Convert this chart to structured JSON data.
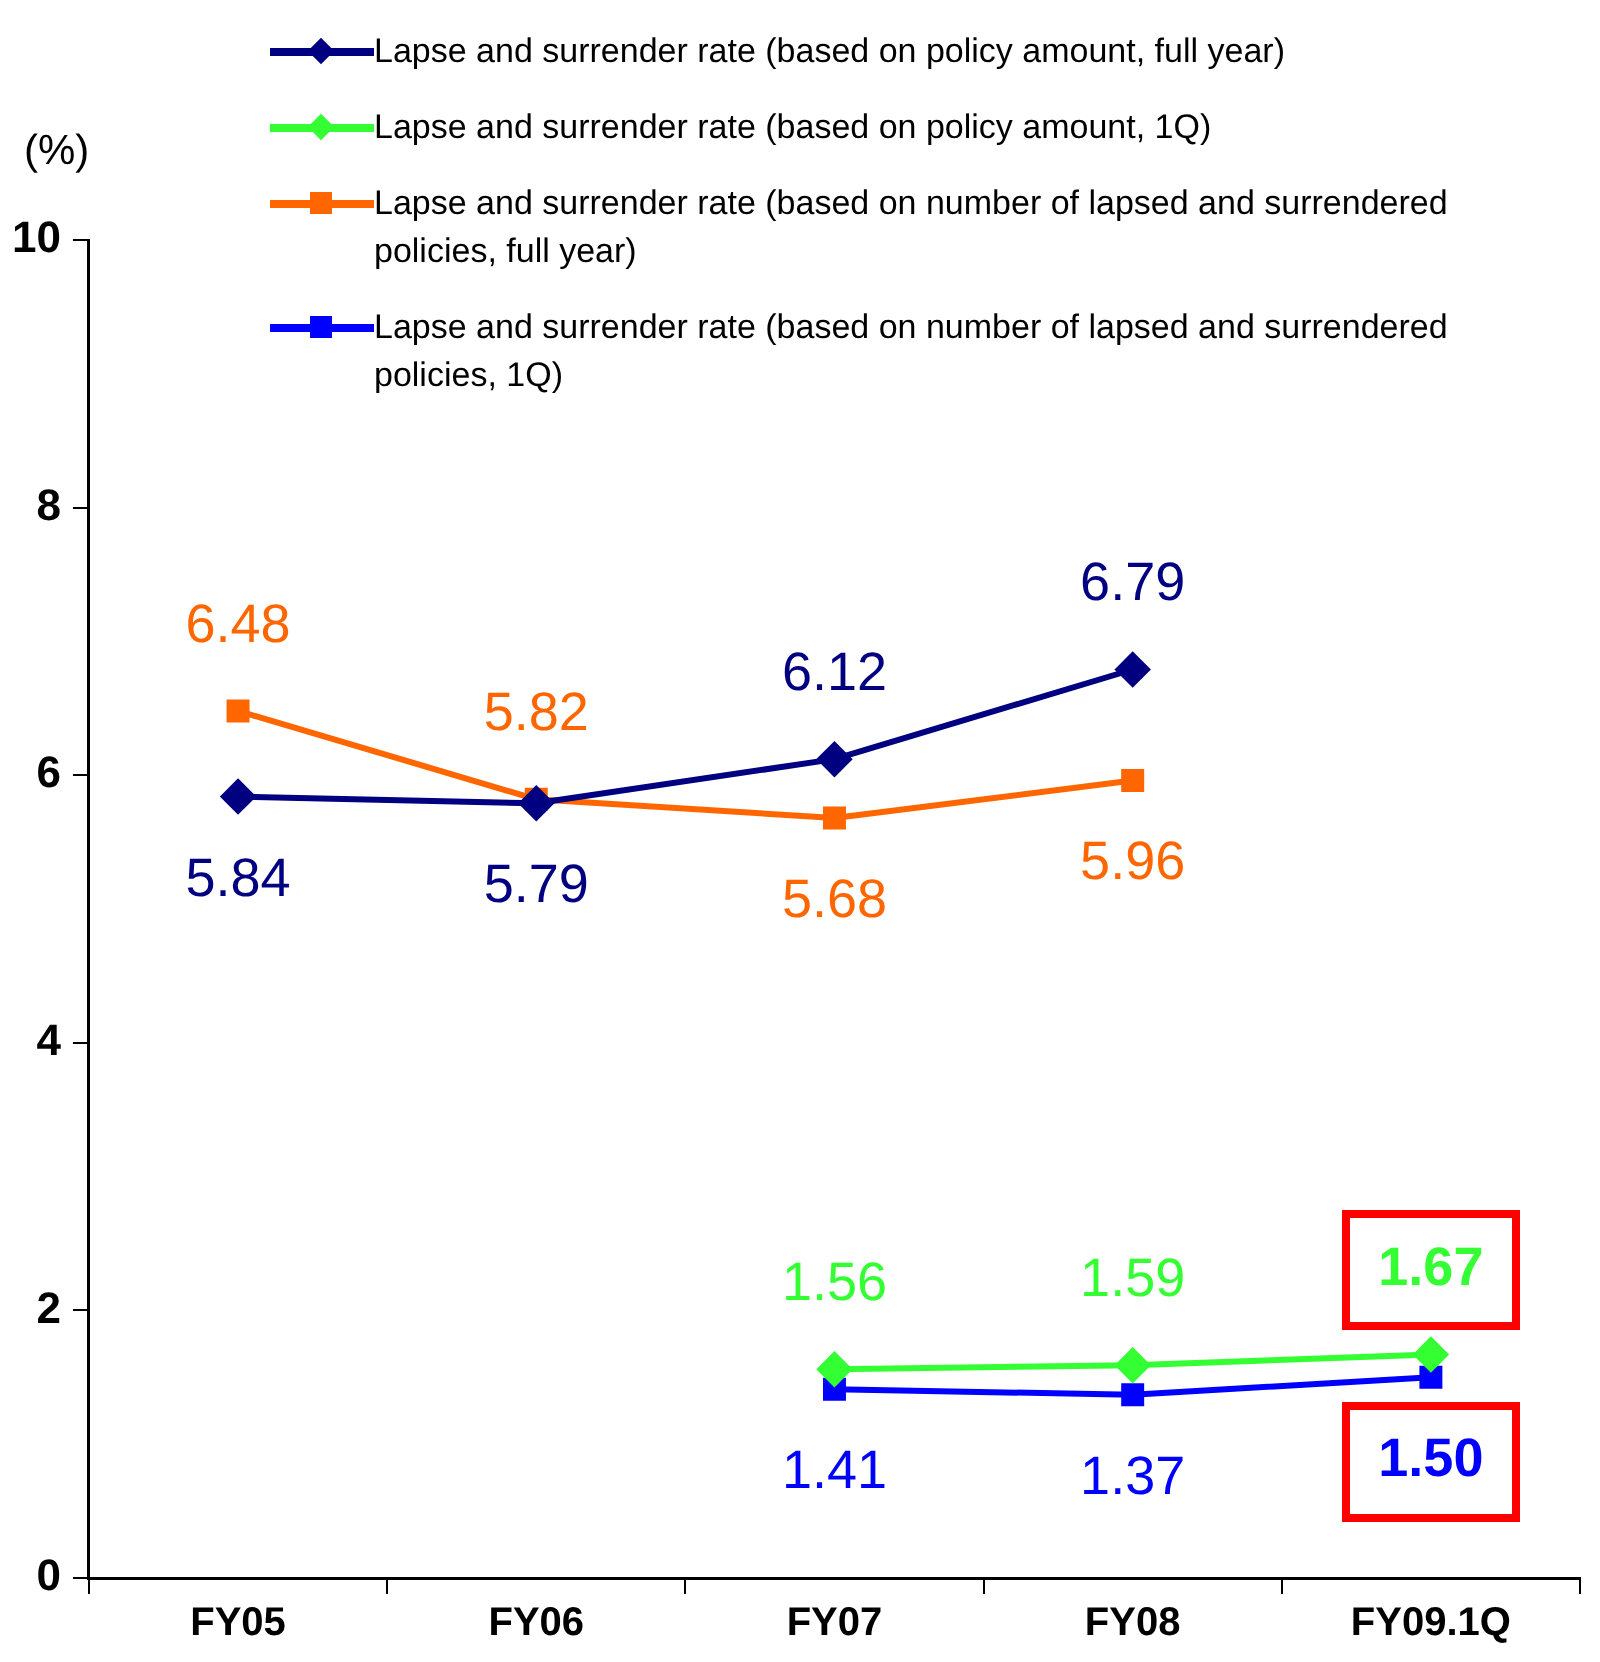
{
  "chart_data": {
    "type": "line",
    "ylabel": "(%)",
    "categories": [
      "FY05",
      "FY06",
      "FY07",
      "FY08",
      "FY09.1Q"
    ],
    "ylim": [
      0,
      10
    ],
    "yticks": [
      0,
      2,
      4,
      6,
      8,
      10
    ],
    "grid": false,
    "legend": "top",
    "series": [
      {
        "name": "Lapse and surrender rate (based on policy amount, full year)",
        "color": "#000080",
        "marker": "diamond",
        "values": [
          5.84,
          5.79,
          6.12,
          6.79,
          null
        ],
        "value_labels": [
          "5.84",
          "5.79",
          "6.12",
          "6.79",
          null
        ]
      },
      {
        "name": "Lapse and surrender rate (based on policy amount, 1Q)",
        "color": "#33ff33",
        "marker": "diamond",
        "values": [
          null,
          null,
          1.56,
          1.59,
          1.67
        ],
        "value_labels": [
          null,
          null,
          "1.56",
          "1.59",
          "1.67"
        ]
      },
      {
        "name": "Lapse and surrender rate (based on number of lapsed and surrendered policies, full year)",
        "color": "#ff6600",
        "marker": "square",
        "values": [
          6.48,
          5.82,
          5.68,
          5.96,
          null
        ],
        "value_labels": [
          "6.48",
          "5.82",
          "5.68",
          "5.96",
          null
        ]
      },
      {
        "name": "Lapse and surrender rate (based on number of lapsed and surrendered policies, 1Q)",
        "color": "#0000ff",
        "marker": "square",
        "values": [
          null,
          null,
          1.41,
          1.37,
          1.5
        ],
        "value_labels": [
          null,
          null,
          "1.41",
          "1.37",
          "1.50"
        ]
      }
    ]
  }
}
